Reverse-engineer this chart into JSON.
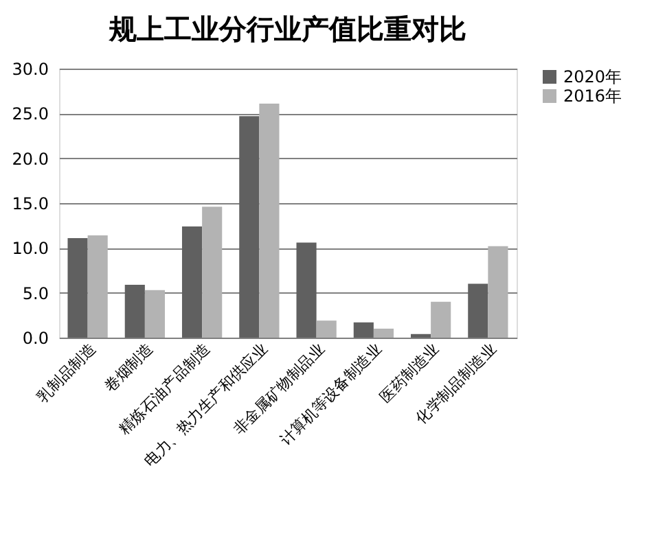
{
  "chart_data": {
    "type": "bar",
    "title": "规上工业分行业产值比重对比",
    "categories": [
      "乳制品制造",
      "卷烟制造",
      "精炼石油产品制造",
      "电力、热力生产和供应业",
      "非金属矿物制品业",
      "计算机等设备制造业",
      "医药制造业",
      "化学制品制造业"
    ],
    "series": [
      {
        "name": "2020年",
        "color": "#606060",
        "values": [
          11.1,
          5.9,
          12.4,
          24.7,
          10.6,
          1.7,
          0.4,
          6.0
        ]
      },
      {
        "name": "2016年",
        "color": "#b3b3b3",
        "values": [
          11.4,
          5.3,
          14.6,
          26.1,
          1.9,
          1.0,
          4.0,
          10.2
        ]
      }
    ],
    "ylim": [
      0,
      30
    ],
    "yticks": [
      {
        "value": 0,
        "label": "0.0"
      },
      {
        "value": 5,
        "label": "5.0"
      },
      {
        "value": 10,
        "label": "10.0"
      },
      {
        "value": 15,
        "label": "15.0"
      },
      {
        "value": 20,
        "label": "20.0"
      },
      {
        "value": 25,
        "label": "25.0"
      },
      {
        "value": 30,
        "label": "30.0"
      }
    ],
    "grid": "y",
    "legend": "right"
  }
}
